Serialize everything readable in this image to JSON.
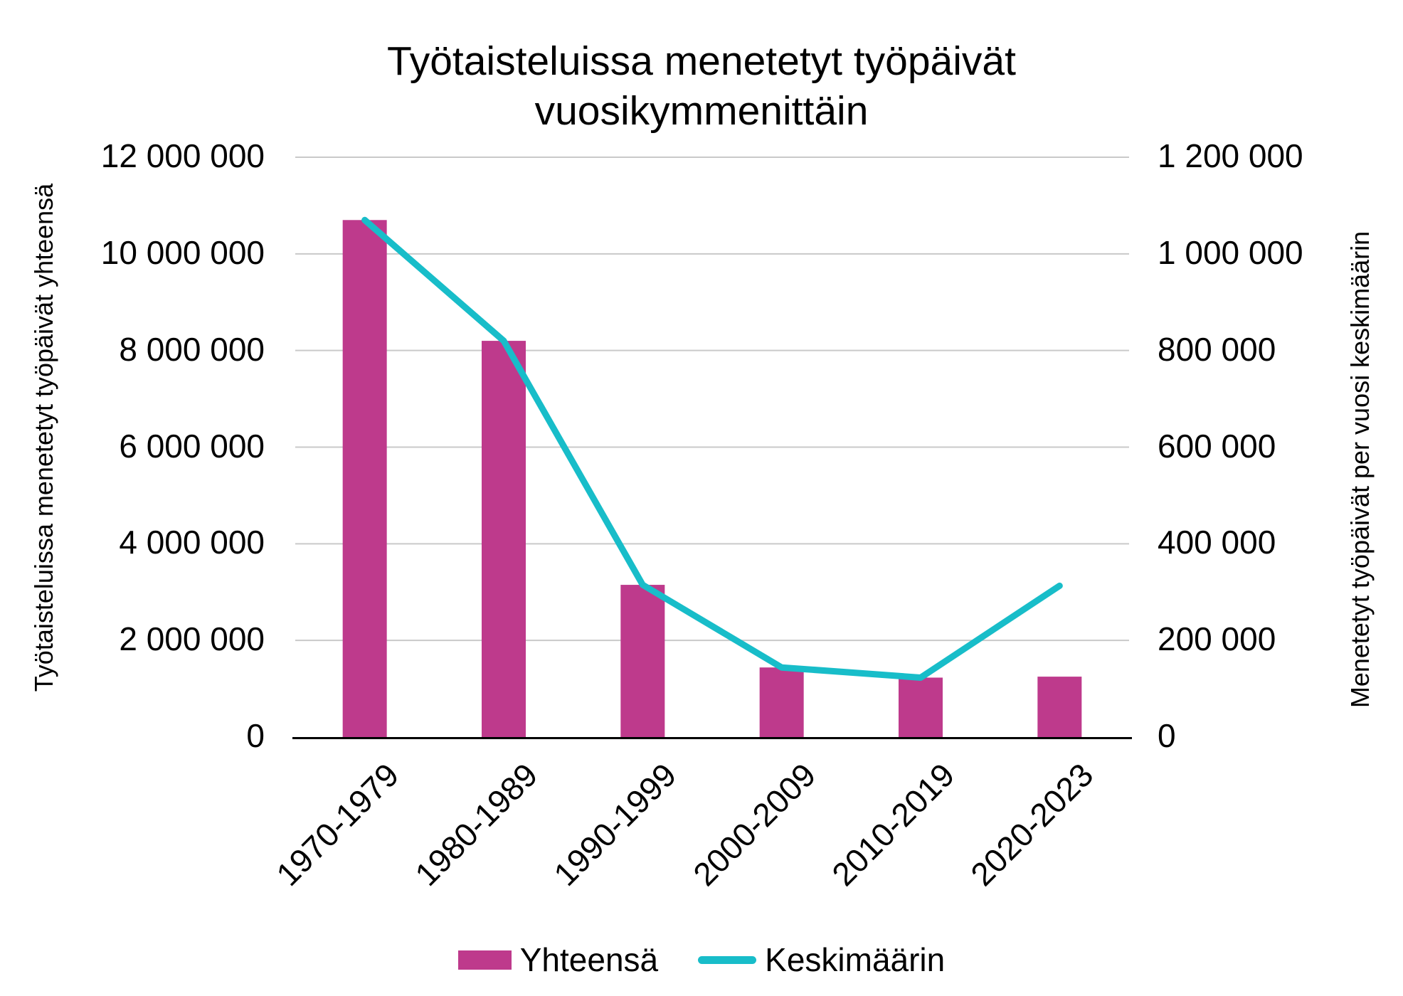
{
  "header": {
    "title": "Työtaisteluissa menetetyt työpäivät vuosikymmenittäin"
  },
  "chart_data": {
    "type": "combo",
    "title": "Työtaisteluissa menetetyt työpäivät vuosikymmenittäin",
    "categories": [
      "1970-1979",
      "1980-1989",
      "1990-1999",
      "2000-2009",
      "2010-2019",
      "2020-2023"
    ],
    "series": [
      {
        "name": "Yhteensä",
        "type": "bar",
        "axis": "left",
        "color": "#BE3A8C",
        "values": [
          10700000,
          8200000,
          3150000,
          1440000,
          1230000,
          1250000
        ]
      },
      {
        "name": "Keskimäärin",
        "type": "line",
        "axis": "right",
        "color": "#18BDC9",
        "values": [
          1070000,
          820000,
          315000,
          144000,
          123000,
          313000
        ]
      }
    ],
    "left_axis": {
      "title": "Työtaisteluissa menetetyt työpäivät yhteensä",
      "min": 0,
      "max": 12000000,
      "tick_values": [
        0,
        2000000,
        4000000,
        6000000,
        8000000,
        10000000,
        12000000
      ],
      "tick_labels": [
        "0",
        "2 000 000",
        "4 000 000",
        "6 000 000",
        "8 000 000",
        "10 000 000",
        "12 000 000"
      ]
    },
    "right_axis": {
      "title": "Menetetyt työpäivät per vuosi keskimäärin",
      "min": 0,
      "max": 1200000,
      "tick_values": [
        0,
        200000,
        400000,
        600000,
        800000,
        1000000,
        1200000
      ],
      "tick_labels": [
        "0",
        "200 000",
        "400 000",
        "600 000",
        "800 000",
        "1 000 000",
        "1 200 000"
      ]
    },
    "grid": true,
    "grid_color": "#c9c9c9",
    "axis_line_color": "#000000",
    "text_color": "#000000",
    "background": "#ffffff",
    "legend_position": "bottom"
  },
  "legend": {
    "items": [
      {
        "label": "Yhteensä",
        "swatch": "bar"
      },
      {
        "label": "Keskimäärin",
        "swatch": "line"
      }
    ]
  }
}
